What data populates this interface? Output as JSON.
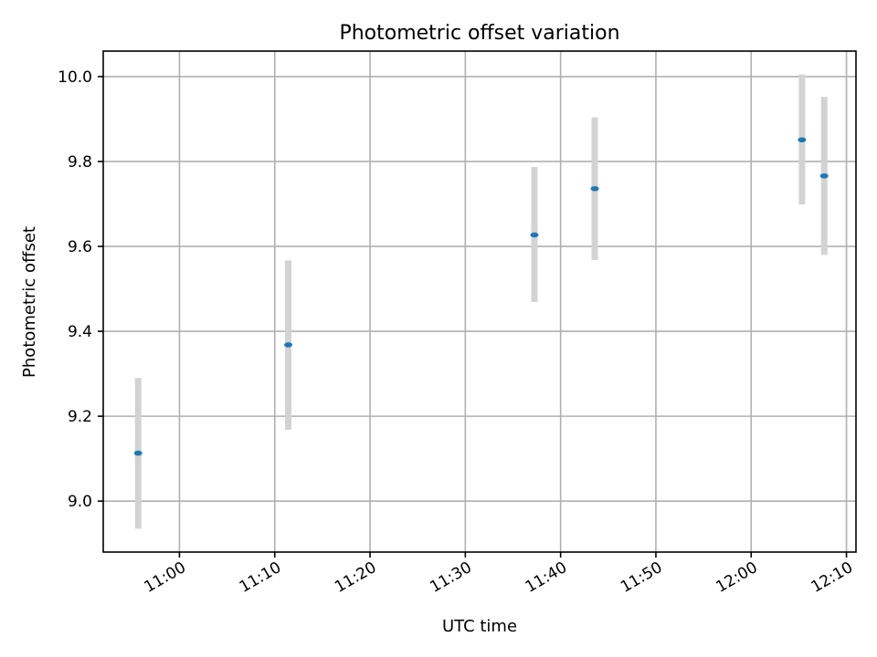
{
  "chart_data": {
    "type": "scatter",
    "title": "Photometric offset variation",
    "xlabel": "UTC time",
    "ylabel": "Photometric offset",
    "xlim": [
      "10:52",
      "12:11"
    ],
    "ylim": [
      8.88,
      10.06
    ],
    "xticks": [
      "11:00",
      "11:10",
      "11:20",
      "11:30",
      "11:40",
      "11:50",
      "12:00",
      "12:10"
    ],
    "yticks": [
      "9.0",
      "9.2",
      "9.4",
      "9.6",
      "9.8",
      "10.0"
    ],
    "grid": true,
    "marker_color": "#1f77b4",
    "errorbar_color": "#d3d3d3",
    "points": [
      {
        "x": "10:55:40",
        "y": 9.113,
        "ylow": 8.935,
        "yhigh": 9.29
      },
      {
        "x": "11:11:25",
        "y": 9.368,
        "ylow": 9.168,
        "yhigh": 9.567
      },
      {
        "x": "11:37:15",
        "y": 9.627,
        "ylow": 9.469,
        "yhigh": 9.787
      },
      {
        "x": "11:43:35",
        "y": 9.736,
        "ylow": 9.568,
        "yhigh": 9.904
      },
      {
        "x": "12:05:20",
        "y": 9.851,
        "ylow": 9.699,
        "yhigh": 10.005
      },
      {
        "x": "12:07:40",
        "y": 9.766,
        "ylow": 9.58,
        "yhigh": 9.952
      }
    ]
  }
}
